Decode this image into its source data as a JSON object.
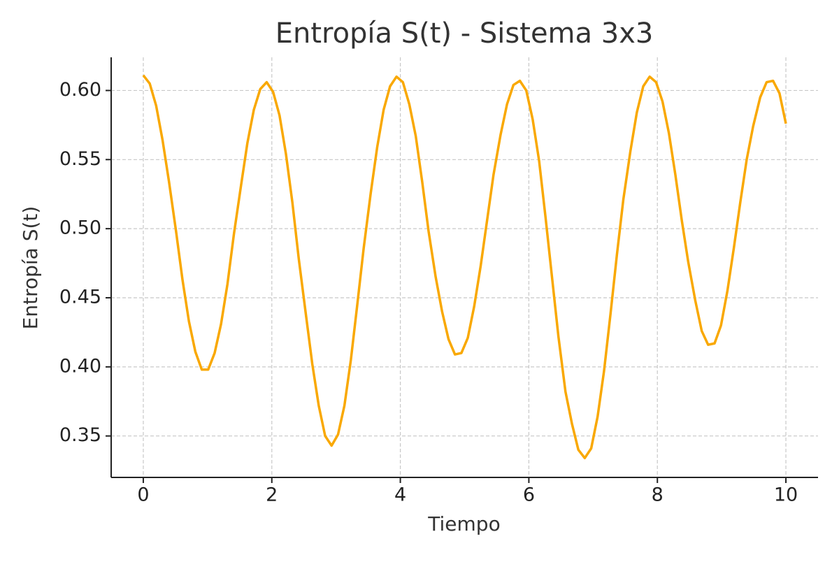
{
  "chart_data": {
    "type": "line",
    "title": "Entropía S(t) - Sistema 3x3",
    "x_label": "Tiempo",
    "y_label": "Entropía S(t)",
    "x": [
      0,
      0.1,
      0.2,
      0.3,
      0.4,
      0.51,
      0.61,
      0.71,
      0.81,
      0.91,
      1.01,
      1.11,
      1.21,
      1.31,
      1.41,
      1.52,
      1.62,
      1.72,
      1.82,
      1.92,
      2.02,
      2.12,
      2.22,
      2.32,
      2.42,
      2.53,
      2.63,
      2.73,
      2.83,
      2.93,
      3.03,
      3.13,
      3.23,
      3.33,
      3.43,
      3.54,
      3.64,
      3.74,
      3.84,
      3.94,
      4.04,
      4.14,
      4.24,
      4.34,
      4.44,
      4.55,
      4.65,
      4.75,
      4.85,
      4.95,
      5.05,
      5.15,
      5.25,
      5.35,
      5.45,
      5.56,
      5.66,
      5.76,
      5.86,
      5.96,
      6.06,
      6.16,
      6.26,
      6.36,
      6.46,
      6.57,
      6.67,
      6.77,
      6.87,
      6.97,
      7.07,
      7.17,
      7.27,
      7.37,
      7.47,
      7.58,
      7.68,
      7.78,
      7.88,
      7.98,
      8.08,
      8.18,
      8.28,
      8.38,
      8.48,
      8.59,
      8.69,
      8.79,
      8.89,
      8.99,
      9.09,
      9.19,
      9.29,
      9.39,
      9.49,
      9.6,
      9.7,
      9.8,
      9.9,
      10
    ],
    "series": [
      {
        "color": "#f9a800",
        "values": [
          0.611,
          0.605,
          0.589,
          0.564,
          0.534,
          0.498,
          0.463,
          0.433,
          0.411,
          0.398,
          0.398,
          0.41,
          0.431,
          0.46,
          0.496,
          0.531,
          0.562,
          0.586,
          0.601,
          0.606,
          0.599,
          0.582,
          0.554,
          0.519,
          0.478,
          0.438,
          0.402,
          0.372,
          0.35,
          0.343,
          0.351,
          0.372,
          0.405,
          0.445,
          0.486,
          0.526,
          0.559,
          0.586,
          0.603,
          0.61,
          0.606,
          0.59,
          0.567,
          0.534,
          0.498,
          0.465,
          0.44,
          0.42,
          0.409,
          0.41,
          0.421,
          0.444,
          0.473,
          0.506,
          0.539,
          0.568,
          0.59,
          0.604,
          0.607,
          0.6,
          0.579,
          0.549,
          0.508,
          0.465,
          0.422,
          0.382,
          0.359,
          0.34,
          0.334,
          0.341,
          0.364,
          0.397,
          0.438,
          0.481,
          0.521,
          0.556,
          0.584,
          0.603,
          0.61,
          0.606,
          0.592,
          0.569,
          0.539,
          0.506,
          0.476,
          0.448,
          0.426,
          0.416,
          0.417,
          0.43,
          0.455,
          0.486,
          0.519,
          0.55,
          0.574,
          0.595,
          0.606,
          0.607,
          0.598,
          0.576
        ]
      }
    ],
    "xlim": [
      -0.5,
      10.5
    ],
    "ylim": [
      0.32,
      0.624
    ],
    "xticks": [
      0,
      2,
      4,
      6,
      8,
      10
    ],
    "yticks": [
      0.35,
      {
        "value": 0.4,
        "label": "0.40"
      },
      0.45,
      {
        "value": 0.5,
        "label": "0.50"
      },
      0.55,
      {
        "value": 0.6,
        "label": "0.60"
      }
    ],
    "grid": true
  }
}
